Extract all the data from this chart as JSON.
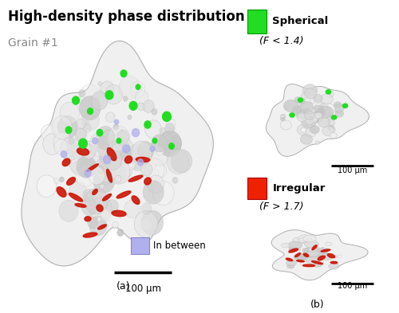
{
  "title_line1": "High-density phase distribution",
  "title_line2": "Grain #1",
  "title_fontsize": 12,
  "subtitle_fontsize": 10,
  "panel_label_a": "(a)",
  "panel_label_b": "(b)",
  "legend_in_between_color": "#b0b0ee",
  "legend_in_between_label": "In between",
  "legend_spherical_color": "#22dd22",
  "legend_spherical_label": "Spherical",
  "legend_spherical_condition": "(F < 1.4)",
  "legend_irregular_color": "#ee2200",
  "legend_irregular_label": "Irregular",
  "legend_irregular_condition": "(F > 1.7)",
  "scalebar_label": "100 μm",
  "background": "#ffffff"
}
